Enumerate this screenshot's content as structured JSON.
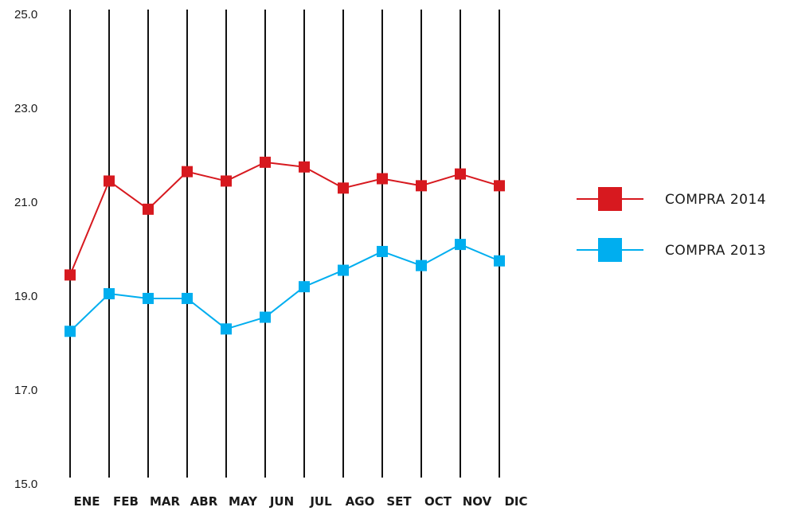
{
  "chart_data": {
    "type": "line",
    "title": "",
    "xlabel": "",
    "ylabel": "",
    "categories": [
      "ENE",
      "FEB",
      "MAR",
      "ABR",
      "MAY",
      "JUN",
      "JUL",
      "AGO",
      "SET",
      "OCT",
      "NOV",
      "DIC"
    ],
    "yticks": [
      "15.0",
      "17.0",
      "19.0",
      "21.0",
      "23.0",
      "25.0"
    ],
    "ylim": [
      15,
      25
    ],
    "grid": "vertical lines at each month",
    "legend_position": "right",
    "series": [
      {
        "name": "COMPRA 2014",
        "color": "#d7191f",
        "marker": "square",
        "values": [
          19.45,
          21.45,
          20.85,
          21.65,
          21.45,
          21.85,
          21.75,
          21.3,
          21.5,
          21.35,
          21.6,
          21.35
        ]
      },
      {
        "name": "COMPRA 2013",
        "color": "#00aeef",
        "marker": "square",
        "values": [
          18.25,
          19.05,
          18.95,
          18.95,
          18.3,
          18.55,
          19.2,
          19.55,
          19.95,
          19.65,
          20.1,
          19.75
        ]
      }
    ]
  }
}
